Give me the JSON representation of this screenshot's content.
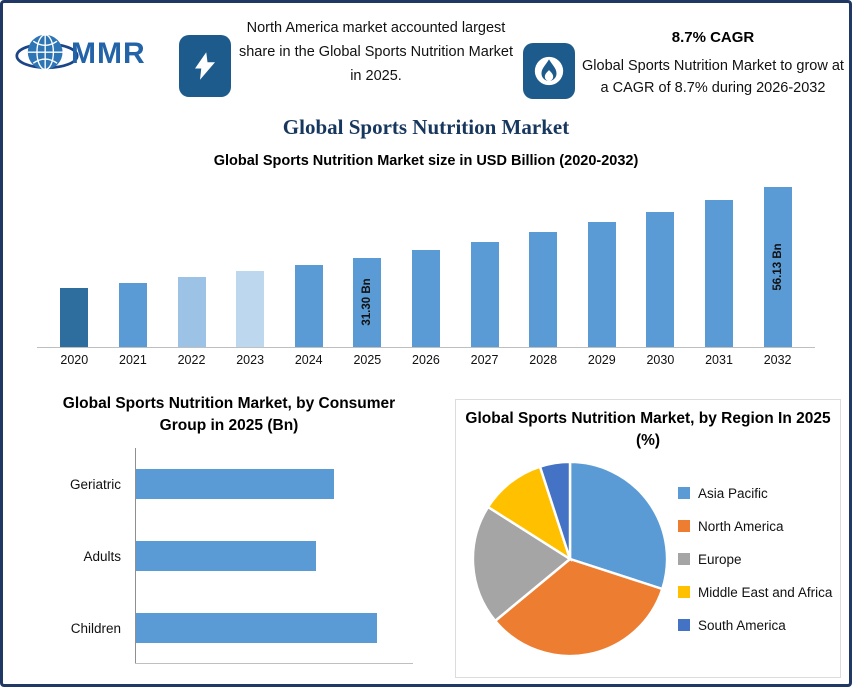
{
  "header": {
    "logo_text": "MMR",
    "left_callout_text": "North America market accounted largest share in the Global Sports Nutrition Market in 2025.",
    "cagr_title": "8.7% CAGR",
    "cagr_text": "Global Sports Nutrition Market to grow at a CAGR of 8.7% during 2026-2032"
  },
  "page_title": "Global Sports Nutrition Market",
  "colors": {
    "border_navy": "#1F3864",
    "title_navy": "#17375E",
    "icon_box_blue": "#1E5B8D",
    "bar_blue": "#5B9BD5"
  },
  "chart_data": [
    {
      "type": "bar",
      "title": "Global Sports Nutrition Market size in USD Billion (2020-2032)",
      "categories": [
        "2020",
        "2021",
        "2022",
        "2023",
        "2024",
        "2025",
        "2026",
        "2027",
        "2028",
        "2029",
        "2030",
        "2031",
        "2032"
      ],
      "values": [
        20.6,
        22.4,
        24.4,
        26.5,
        28.8,
        31.3,
        34.0,
        37.0,
        40.2,
        43.7,
        47.5,
        51.6,
        56.13
      ],
      "ylim": [
        0,
        60
      ],
      "value_labels": {
        "2025": "31.30 Bn",
        "2032": "56.13 Bn"
      },
      "bar_colors": [
        "#2E6E9E",
        "#5B9BD5",
        "#9CC2E5",
        "#BDD7EE",
        "#5B9BD5",
        "#5B9BD5",
        "#5B9BD5",
        "#5B9BD5",
        "#5B9BD5",
        "#5B9BD5",
        "#5B9BD5",
        "#5B9BD5",
        "#5B9BD5"
      ],
      "grid": false,
      "legend": false
    },
    {
      "type": "bar",
      "orientation": "horizontal",
      "title": "Global Sports Nutrition Market, by Consumer Group in 2025 (Bn)",
      "categories": [
        "Geriatric",
        "Adults",
        "Children"
      ],
      "values": [
        10.0,
        9.1,
        12.2
      ],
      "xlim": [
        0,
        14
      ],
      "bar_color": "#5B9BD5",
      "grid": false,
      "legend": false
    },
    {
      "type": "pie",
      "title": "Global Sports Nutrition Market, by Region In 2025 (%)",
      "labels": [
        "Asia Pacific",
        "North America",
        "Europe",
        "Middle East and Africa",
        "South America"
      ],
      "values": [
        30,
        34,
        20,
        11,
        5
      ],
      "colors": [
        "#5B9BD5",
        "#ED7D31",
        "#A5A5A5",
        "#FFC000",
        "#4472C4"
      ],
      "start_angle_deg": -90,
      "direction": "clockwise",
      "legend_position": "right"
    }
  ]
}
